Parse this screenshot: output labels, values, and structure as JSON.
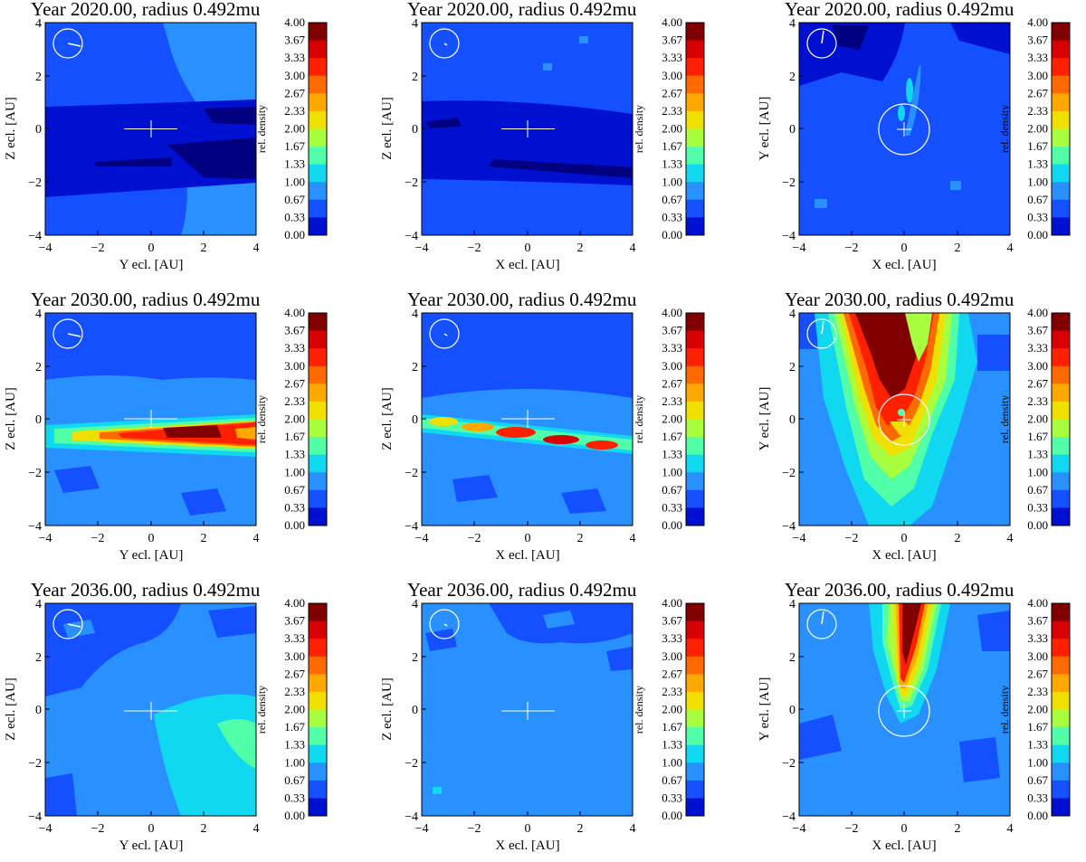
{
  "figure": {
    "colorbar": {
      "label": "rel. density",
      "levels": [
        "4.00",
        "3.67",
        "3.33",
        "3.00",
        "2.67",
        "2.33",
        "2.00",
        "1.67",
        "1.33",
        "1.00",
        "0.67",
        "0.33",
        "0.00"
      ],
      "colors": [
        "#800000",
        "#d80000",
        "#ff2000",
        "#ff6a00",
        "#ffa800",
        "#f0e000",
        "#a8ff40",
        "#50ffa8",
        "#10d8f0",
        "#2890ff",
        "#1450ff",
        "#0010d0",
        "#000080"
      ]
    },
    "tick_labels": [
      "−4",
      "−2",
      "0",
      "2",
      "4"
    ]
  },
  "chart_data": [
    {
      "type": "contour",
      "title": "Year 2020.00, radius 0.492mu",
      "xlabel": "Y ecl. [AU]",
      "ylabel": "Z ecl. [AU]",
      "xlim": [
        -4,
        4
      ],
      "ylim": [
        -4,
        4
      ],
      "pattern": "background density ~0.67–1.33 with low-density (0.33–0.67) band near Z≈0 to −2",
      "background_level": 1.0
    },
    {
      "type": "contour",
      "title": "Year 2020.00, radius 0.492mu",
      "xlabel": "X ecl. [AU]",
      "ylabel": "Z ecl. [AU]",
      "xlim": [
        -4,
        4
      ],
      "ylim": [
        -4,
        4
      ],
      "pattern": "background density ~1.0 with low-density band between Z≈−2 and 0.5",
      "background_level": 1.0
    },
    {
      "type": "contour",
      "title": "Year 2020.00, radius 0.492mu",
      "xlabel": "X ecl. [AU]",
      "ylabel": "Y ecl. [AU]",
      "xlim": [
        -4,
        4
      ],
      "ylim": [
        -4,
        4
      ],
      "pattern": "low density with narrow stream of 1.33–1.67 from origin toward +Y",
      "background_level": 0.67
    },
    {
      "type": "contour",
      "title": "Year 2030.00, radius 0.492mu",
      "xlabel": "Y ecl. [AU]",
      "ylabel": "Z ecl. [AU]",
      "xlim": [
        -4,
        4
      ],
      "ylim": [
        -4,
        4
      ],
      "pattern": "thin high-density sheet (up to 4.0) near Z≈−0.5",
      "background_level": 1.0
    },
    {
      "type": "contour",
      "title": "Year 2030.00, radius 0.492mu",
      "xlabel": "X ecl. [AU]",
      "ylabel": "Z ecl. [AU]",
      "xlim": [
        -4,
        4
      ],
      "ylim": [
        -4,
        4
      ],
      "pattern": "thin sheet with clumps up to ~3.67 near Z≈−0.5",
      "background_level": 1.0
    },
    {
      "type": "contour",
      "title": "Year 2030.00, radius 0.492mu",
      "xlabel": "X ecl. [AU]",
      "ylabel": "Y ecl. [AU]",
      "xlim": [
        -4,
        4
      ],
      "ylim": [
        -4,
        4
      ],
      "pattern": "broad V-shaped high-density stream toward +Y, peak >4.0",
      "background_level": 1.33
    },
    {
      "type": "contour",
      "title": "Year 2036.00, radius 0.492mu",
      "xlabel": "Y ecl. [AU]",
      "ylabel": "Z ecl. [AU]",
      "xlim": [
        -4,
        4
      ],
      "ylim": [
        -4,
        4
      ],
      "pattern": "background ~1.0–1.33 with mild enhancement (1.67) at +Y, −Z",
      "background_level": 1.0
    },
    {
      "type": "contour",
      "title": "Year 2036.00, radius 0.492mu",
      "xlabel": "X ecl. [AU]",
      "ylabel": "Z ecl. [AU]",
      "xlim": [
        -4,
        4
      ],
      "ylim": [
        -4,
        4
      ],
      "pattern": "nearly uniform background ~1.0",
      "background_level": 1.0
    },
    {
      "type": "contour",
      "title": "Year 2036.00, radius 0.492mu",
      "xlabel": "X ecl. [AU]",
      "ylabel": "Y ecl. [AU]",
      "xlim": [
        -4,
        4
      ],
      "ylim": [
        -4,
        4
      ],
      "pattern": "narrow high-density stream (up to 4.0) from origin toward +Y",
      "background_level": 1.0
    }
  ]
}
